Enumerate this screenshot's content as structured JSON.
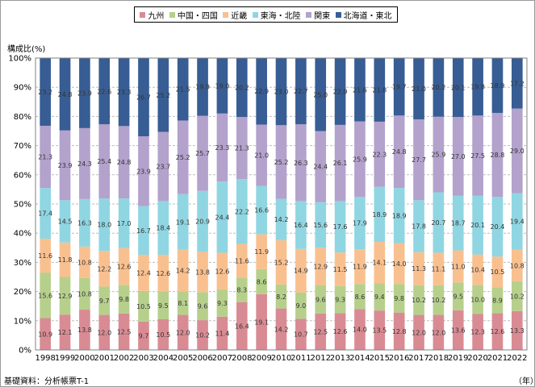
{
  "legend": [
    {
      "label": "九州",
      "color": "#d98b94"
    },
    {
      "label": "中国・四国",
      "color": "#b6d08c"
    },
    {
      "label": "近畿",
      "color": "#f9c08f"
    },
    {
      "label": "東海・北陸",
      "color": "#8fd6e2"
    },
    {
      "label": "関東",
      "color": "#b3a2cc"
    },
    {
      "label": "北海道・東北",
      "color": "#375d94"
    }
  ],
  "footer": {
    "source": "基礎資料：分析帳票T-1",
    "x_unit": "（年）"
  },
  "chart_data": {
    "type": "bar",
    "stacked": true,
    "ylabel": "構成比(%)",
    "xlabel": "（年）",
    "ylim": [
      0,
      100
    ],
    "yticks": [
      "0%",
      "10%",
      "20%",
      "30%",
      "40%",
      "50%",
      "60%",
      "70%",
      "80%",
      "90%",
      "100%"
    ],
    "grid": true,
    "legend_position": "top",
    "categories": [
      "1998",
      "1999",
      "2000",
      "2001",
      "2002",
      "2003",
      "2004",
      "2005",
      "2006",
      "2007",
      "2008",
      "2009",
      "2010",
      "2011",
      "2012",
      "2013",
      "2014",
      "2015",
      "2016",
      "2017",
      "2018",
      "2019",
      "2020",
      "2021",
      "2022"
    ],
    "series": [
      {
        "name": "九州",
        "color": "#d98b94",
        "values": [
          10.9,
          12.1,
          13.8,
          12.0,
          12.5,
          9.7,
          10.5,
          12.0,
          10.2,
          11.4,
          16.4,
          19.1,
          14.2,
          10.7,
          12.5,
          12.6,
          14.0,
          13.5,
          12.8,
          12.0,
          12.0,
          13.6,
          12.3,
          12.6,
          13.3
        ]
      },
      {
        "name": "中国・四国",
        "color": "#b6d08c",
        "values": [
          15.6,
          12.9,
          10.8,
          9.7,
          9.8,
          10.5,
          9.5,
          8.1,
          9.6,
          9.3,
          8.3,
          8.6,
          8.2,
          9.0,
          9.6,
          9.3,
          8.6,
          9.4,
          9.8,
          10.2,
          10.2,
          9.5,
          10.0,
          8.9,
          10.2
        ]
      },
      {
        "name": "近畿",
        "color": "#f9c08f",
        "values": [
          11.6,
          11.8,
          10.8,
          12.2,
          12.6,
          12.4,
          12.6,
          14.2,
          13.8,
          12.6,
          11.6,
          11.9,
          15.2,
          14.9,
          12.9,
          11.5,
          11.9,
          14.1,
          14.0,
          11.3,
          11.1,
          11.0,
          10.4,
          10.5,
          10.8
        ]
      },
      {
        "name": "東海・北陸",
        "color": "#8fd6e2",
        "values": [
          17.4,
          14.5,
          16.3,
          18.0,
          17.0,
          16.7,
          18.4,
          19.1,
          20.9,
          24.4,
          22.2,
          16.6,
          14.2,
          16.4,
          15.6,
          17.6,
          17.9,
          18.9,
          18.9,
          17.8,
          20.7,
          18.7,
          20.1,
          20.4,
          19.4
        ]
      },
      {
        "name": "関東",
        "color": "#b3a2cc",
        "values": [
          21.3,
          23.9,
          24.3,
          25.4,
          24.8,
          23.9,
          23.7,
          25.2,
          25.7,
          23.3,
          21.3,
          21.0,
          25.2,
          26.3,
          24.4,
          26.1,
          25.9,
          22.3,
          24.8,
          27.7,
          25.9,
          27.0,
          27.5,
          28.8,
          29.0
        ]
      },
      {
        "name": "北海道・東北",
        "color": "#375d94",
        "values": [
          23.2,
          24.8,
          23.9,
          22.6,
          23.3,
          26.7,
          25.2,
          21.5,
          19.9,
          19.0,
          20.2,
          22.9,
          23.0,
          22.7,
          25.0,
          22.9,
          21.6,
          21.8,
          19.7,
          21.0,
          20.2,
          20.1,
          19.8,
          18.9,
          17.2
        ]
      }
    ]
  }
}
